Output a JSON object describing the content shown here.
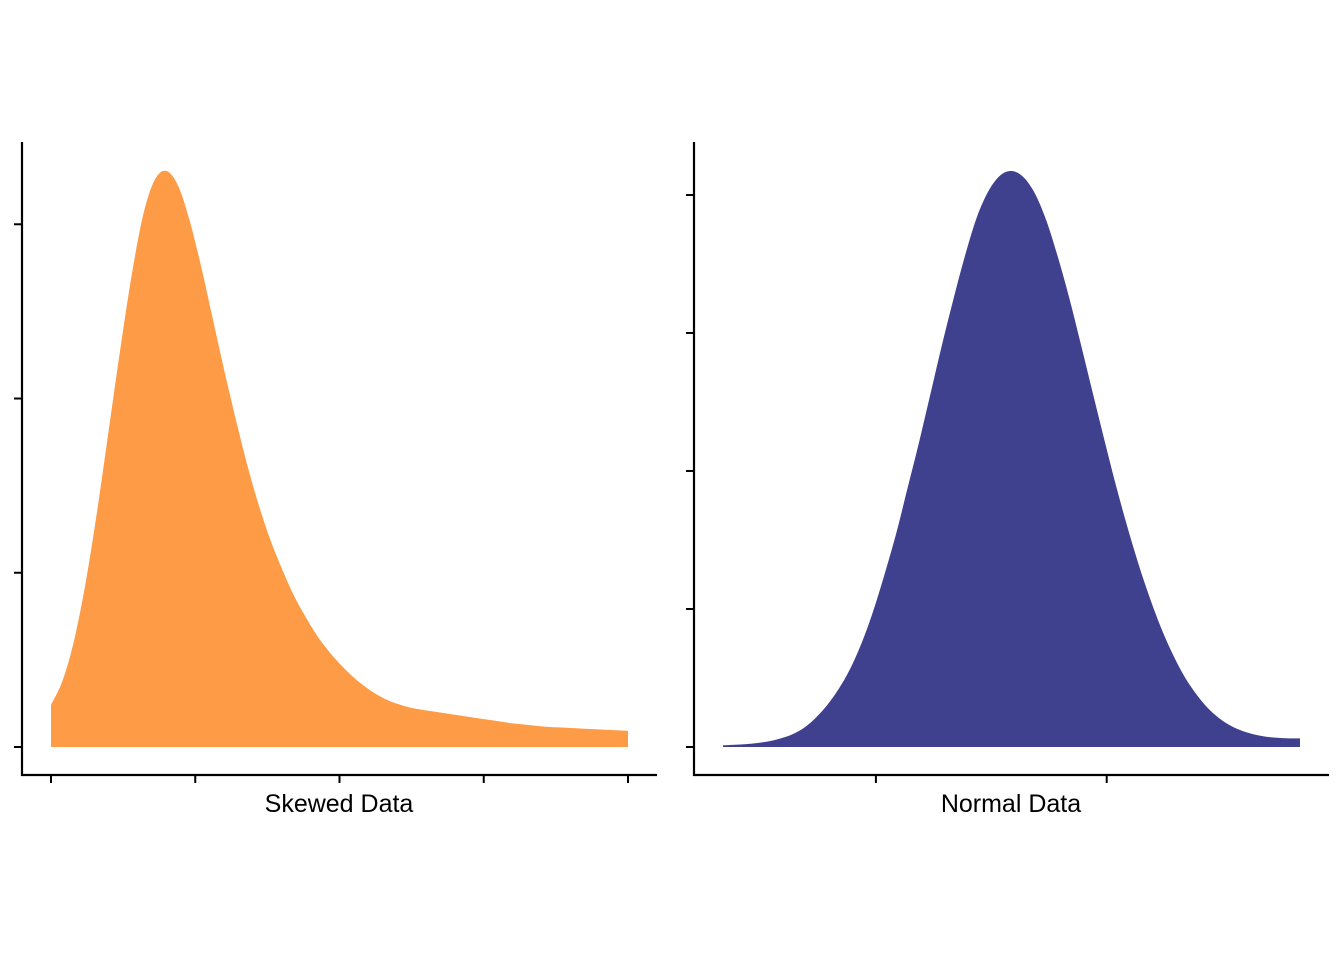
{
  "chart_data": [
    {
      "type": "area",
      "xlabel": "Skewed Data",
      "ylabel": "",
      "title": "",
      "color": "#FD9B46",
      "x_tick_count": 5,
      "y_tick_count": 4,
      "xlim": [
        0,
        1
      ],
      "ylim": [
        0,
        1
      ],
      "grid": false,
      "legend": "none",
      "x": [
        0.0,
        0.02,
        0.04,
        0.06,
        0.08,
        0.1,
        0.12,
        0.14,
        0.16,
        0.18,
        0.2,
        0.22,
        0.24,
        0.26,
        0.28,
        0.3,
        0.32,
        0.34,
        0.36,
        0.38,
        0.4,
        0.42,
        0.44,
        0.46,
        0.48,
        0.5,
        0.52,
        0.54,
        0.56,
        0.58,
        0.6,
        0.62,
        0.64,
        0.66,
        0.68,
        0.7,
        0.72,
        0.74,
        0.76,
        0.78,
        0.8,
        0.82,
        0.84,
        0.86,
        0.88,
        0.9,
        0.92,
        0.94,
        0.96,
        0.98,
        1.0
      ],
      "y": [
        0.073,
        0.115,
        0.185,
        0.285,
        0.41,
        0.55,
        0.69,
        0.82,
        0.925,
        0.985,
        1.0,
        0.975,
        0.915,
        0.835,
        0.745,
        0.655,
        0.57,
        0.49,
        0.42,
        0.36,
        0.31,
        0.265,
        0.228,
        0.195,
        0.168,
        0.145,
        0.125,
        0.108,
        0.094,
        0.083,
        0.075,
        0.069,
        0.065,
        0.062,
        0.059,
        0.056,
        0.053,
        0.05,
        0.047,
        0.044,
        0.041,
        0.039,
        0.037,
        0.035,
        0.034,
        0.033,
        0.032,
        0.031,
        0.03,
        0.029,
        0.028
      ]
    },
    {
      "type": "area",
      "xlabel": "Normal Data",
      "ylabel": "",
      "title": "",
      "color": "#3F418F",
      "x_tick_positions": [
        0.265,
        0.665
      ],
      "y_tick_count": 5,
      "xlim": [
        0,
        1
      ],
      "ylim": [
        0,
        1
      ],
      "grid": false,
      "legend": "none",
      "x": [
        0.0,
        0.02,
        0.04,
        0.06,
        0.08,
        0.1,
        0.12,
        0.14,
        0.16,
        0.18,
        0.2,
        0.22,
        0.24,
        0.26,
        0.28,
        0.3,
        0.32,
        0.34,
        0.36,
        0.38,
        0.4,
        0.42,
        0.44,
        0.46,
        0.48,
        0.5,
        0.52,
        0.54,
        0.56,
        0.58,
        0.6,
        0.62,
        0.64,
        0.66,
        0.68,
        0.7,
        0.72,
        0.74,
        0.76,
        0.78,
        0.8,
        0.82,
        0.84,
        0.86,
        0.88,
        0.9,
        0.92,
        0.94,
        0.96,
        0.98,
        1.0
      ],
      "y": [
        0.003,
        0.004,
        0.005,
        0.007,
        0.01,
        0.015,
        0.022,
        0.033,
        0.05,
        0.072,
        0.1,
        0.135,
        0.18,
        0.235,
        0.3,
        0.37,
        0.45,
        0.53,
        0.615,
        0.7,
        0.78,
        0.855,
        0.92,
        0.965,
        0.992,
        1.0,
        0.99,
        0.962,
        0.915,
        0.852,
        0.78,
        0.7,
        0.618,
        0.537,
        0.458,
        0.385,
        0.318,
        0.258,
        0.205,
        0.16,
        0.122,
        0.092,
        0.068,
        0.05,
        0.037,
        0.028,
        0.022,
        0.018,
        0.016,
        0.015,
        0.015
      ]
    }
  ]
}
